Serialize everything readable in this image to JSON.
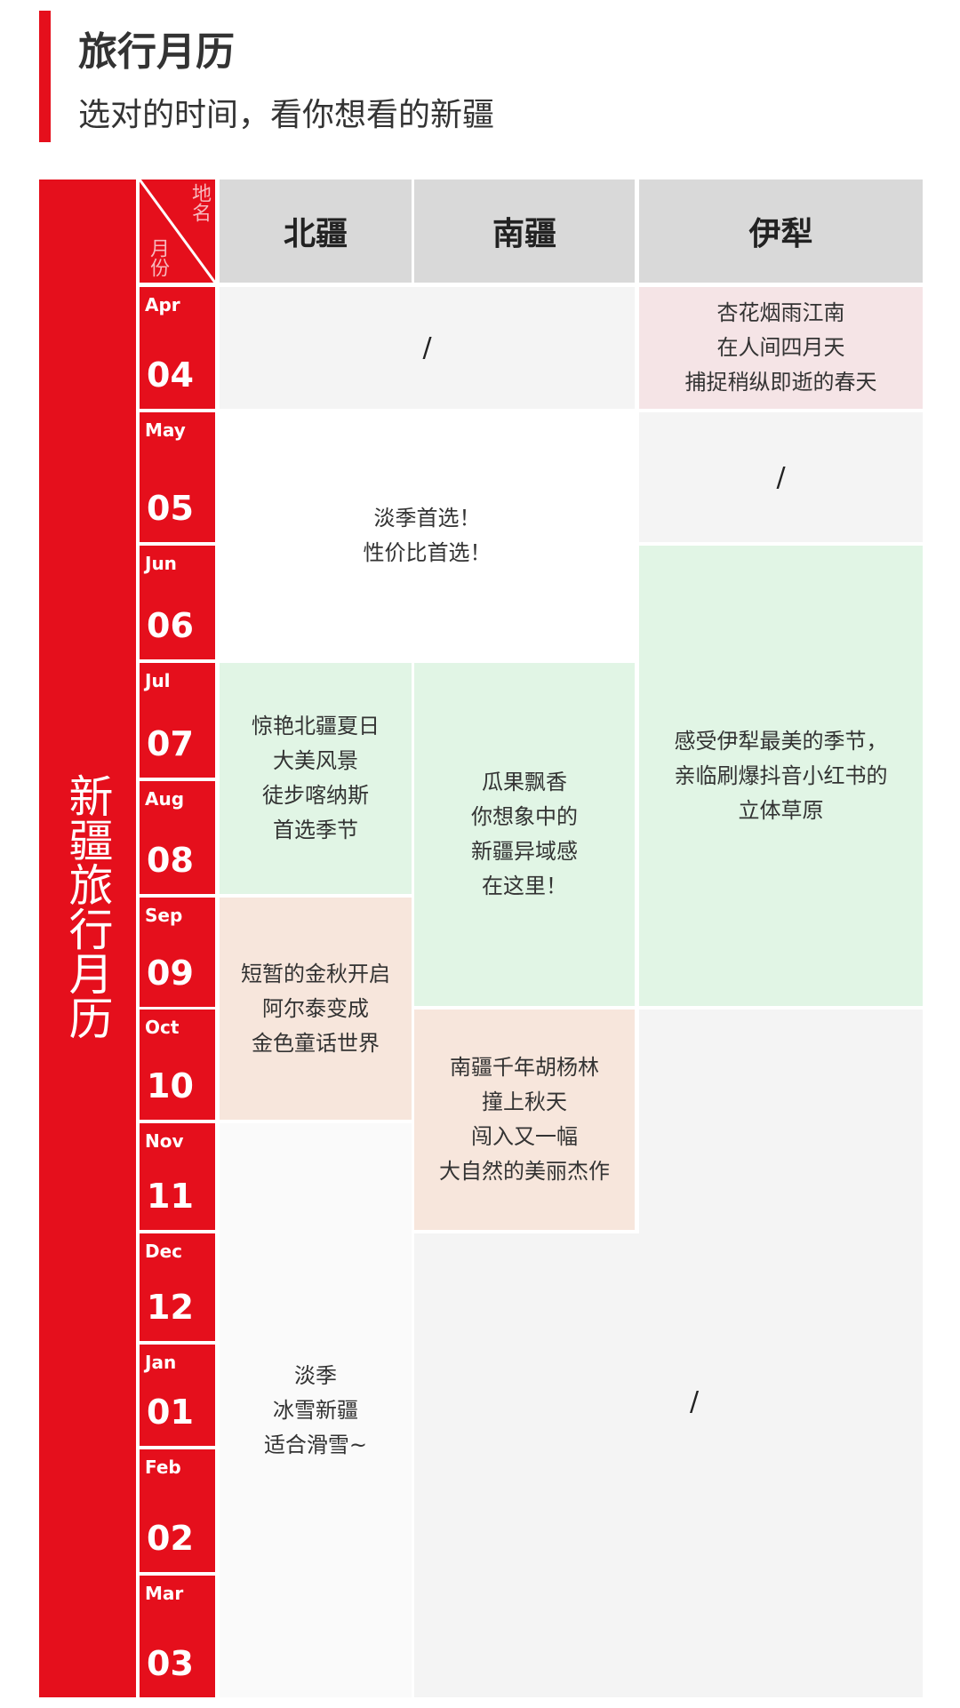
{
  "header": {
    "title": "旅行月历",
    "subtitle": "选对的时间，看你想看的新疆"
  },
  "sidebar_title": "新疆旅行月历",
  "corner": {
    "place_label": "地名",
    "month_label": "月份"
  },
  "columns": [
    "北疆",
    "南疆",
    "伊犁"
  ],
  "months": [
    {
      "abbr": "Apr",
      "num": "04"
    },
    {
      "abbr": "May",
      "num": "05"
    },
    {
      "abbr": "Jun",
      "num": "06"
    },
    {
      "abbr": "Jul",
      "num": "07"
    },
    {
      "abbr": "Aug",
      "num": "08"
    },
    {
      "abbr": "Sep",
      "num": "09"
    },
    {
      "abbr": "Oct",
      "num": "10"
    },
    {
      "abbr": "Nov",
      "num": "11"
    },
    {
      "abbr": "Dec",
      "num": "12"
    },
    {
      "abbr": "Jan",
      "num": "01"
    },
    {
      "abbr": "Feb",
      "num": "02"
    },
    {
      "abbr": "Mar",
      "num": "03"
    }
  ],
  "cells": {
    "apr_north_south": "/",
    "apr_yili": "杏花烟雨江南\n在人间四月天\n捕捉稍纵即逝的春天",
    "may_jun_north_south": "淡季首选！\n性价比首选！",
    "may_yili": "/",
    "jun_sep_yili": "感受伊犁最美的季节，\n亲临刷爆抖音小红书的\n立体草原",
    "jul_aug_north": "惊艳北疆夏日\n大美风景\n徒步喀纳斯\n首选季节",
    "jul_sep_south": "瓜果飘香\n你想象中的\n新疆异域感\n在这里！",
    "sep_oct_north": "短暂的金秋开启\n阿尔泰变成\n金色童话世界",
    "oct_nov_south": "南疆千年胡杨林\n撞上秋天\n闯入又一幅\n大自然的美丽杰作",
    "nov_mar_north": "淡季\n冰雪新疆\n适合滑雪~",
    "winter_south_yili": "/"
  },
  "colors": {
    "accent": "#e50f1c",
    "header": "#d9d9d9",
    "off": "#f4f4f4",
    "spring": "#f5e4e6",
    "summer": "#e1f5e5",
    "autumn": "#f7e6dc"
  }
}
